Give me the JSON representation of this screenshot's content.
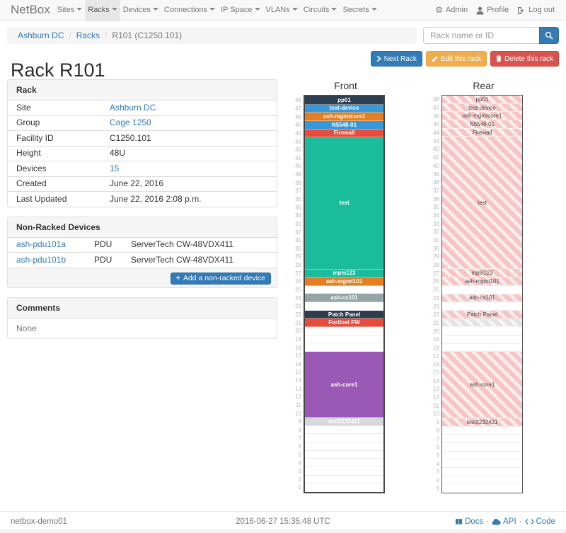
{
  "navbar": {
    "brand": "NetBox",
    "items": [
      {
        "label": "Sites"
      },
      {
        "label": "Racks",
        "active": true
      },
      {
        "label": "Devices"
      },
      {
        "label": "Connections"
      },
      {
        "label": "IP Space"
      },
      {
        "label": "VLANs"
      },
      {
        "label": "Circuits"
      },
      {
        "label": "Secrets"
      }
    ],
    "right": [
      {
        "icon": "gear-icon",
        "label": "Admin"
      },
      {
        "icon": "user-icon",
        "label": "Profile"
      },
      {
        "icon": "logout-icon",
        "label": "Log out"
      }
    ]
  },
  "breadcrumb": [
    {
      "label": "Ashburn DC",
      "link": true
    },
    {
      "label": "Racks",
      "link": true
    },
    {
      "label": "R101 (C1250.101)",
      "link": false
    }
  ],
  "search": {
    "placeholder": "Rack name or ID"
  },
  "page": {
    "title": "Rack R101"
  },
  "actions": [
    {
      "label": "Next Rack",
      "style": "primary",
      "icon": "chevron-right-icon"
    },
    {
      "label": "Edit this rack",
      "style": "warning",
      "icon": "pencil-icon"
    },
    {
      "label": "Delete this rack",
      "style": "danger",
      "icon": "trash-icon"
    }
  ],
  "rack_info": {
    "title": "Rack",
    "rows": [
      {
        "label": "Site",
        "value": "Ashburn DC",
        "link": true
      },
      {
        "label": "Group",
        "value": "Cage 1250",
        "link": true
      },
      {
        "label": "Facility ID",
        "value": "C1250.101",
        "link": false
      },
      {
        "label": "Height",
        "value": "48U",
        "link": false
      },
      {
        "label": "Devices",
        "value": "15",
        "link": true
      },
      {
        "label": "Created",
        "value": "June 22, 2016",
        "link": false
      },
      {
        "label": "Last Updated",
        "value": "June 22, 2016 2:08 p.m.",
        "link": false
      }
    ]
  },
  "non_racked": {
    "title": "Non-Racked Devices",
    "rows": [
      {
        "name": "ash-pdu101a",
        "role": "PDU",
        "model": "ServerTech CW-48VDX411"
      },
      {
        "name": "ash-pdu101b",
        "role": "PDU",
        "model": "ServerTech CW-48VDX411"
      }
    ],
    "add_label": "Add a non-racked device"
  },
  "comments": {
    "title": "Comments",
    "body": "None"
  },
  "elevation": {
    "front_label": "Front",
    "rear_label": "Rear",
    "height_units": 48,
    "units": [
      {
        "top_u": 48,
        "span": 1,
        "name": "pp01",
        "color": "#2c3e50",
        "rear": "hatch"
      },
      {
        "top_u": 47,
        "span": 1,
        "name": "test-device",
        "color": "#3498db",
        "rear": "hatch"
      },
      {
        "top_u": 46,
        "span": 1,
        "name": "ash-mgmtcore1",
        "color": "#e67e22",
        "rear": "hatch"
      },
      {
        "top_u": 45,
        "span": 1,
        "name": "N5548-01",
        "color": "#3498db",
        "rear": "hatch"
      },
      {
        "top_u": 44,
        "span": 1,
        "name": "Firewall",
        "color": "#e74c3c",
        "rear": "hatch"
      },
      {
        "top_u": 43,
        "span": 16,
        "name": "test",
        "color": "#1abc9c",
        "rear": "hatch"
      },
      {
        "top_u": 27,
        "span": 1,
        "name": "mpls123",
        "color": "#1abc9c",
        "rear": "hatch"
      },
      {
        "top_u": 26,
        "span": 1,
        "name": "ash-mgmt101",
        "color": "#e67e22",
        "rear": "hatch"
      },
      {
        "top_u": 24,
        "span": 1,
        "name": "ash-cs101",
        "color": "#95a5a6",
        "rear": "hatch"
      },
      {
        "top_u": 22,
        "span": 1,
        "name": "Patch Panel",
        "color": "#2c3e50",
        "rear": "hatch"
      },
      {
        "top_u": 21,
        "span": 1,
        "name": "Fortinet FW",
        "color": "#e74c3c",
        "rear": "ghost"
      },
      {
        "top_u": 17,
        "span": 8,
        "name": "ash-core1",
        "color": "#9b59b6",
        "rear": "hatch"
      },
      {
        "top_u": 9,
        "span": 1,
        "name": "test3232421",
        "color": "#d6d9dc",
        "rear": "hatch"
      }
    ]
  },
  "footer": {
    "hostname": "netbox-demo01",
    "timestamp": "2016-06-27 15:35:48 UTC",
    "links": [
      {
        "icon": "book-icon",
        "label": "Docs"
      },
      {
        "icon": "cloud-icon",
        "label": "API"
      },
      {
        "icon": "code-icon",
        "label": "Code"
      }
    ]
  }
}
